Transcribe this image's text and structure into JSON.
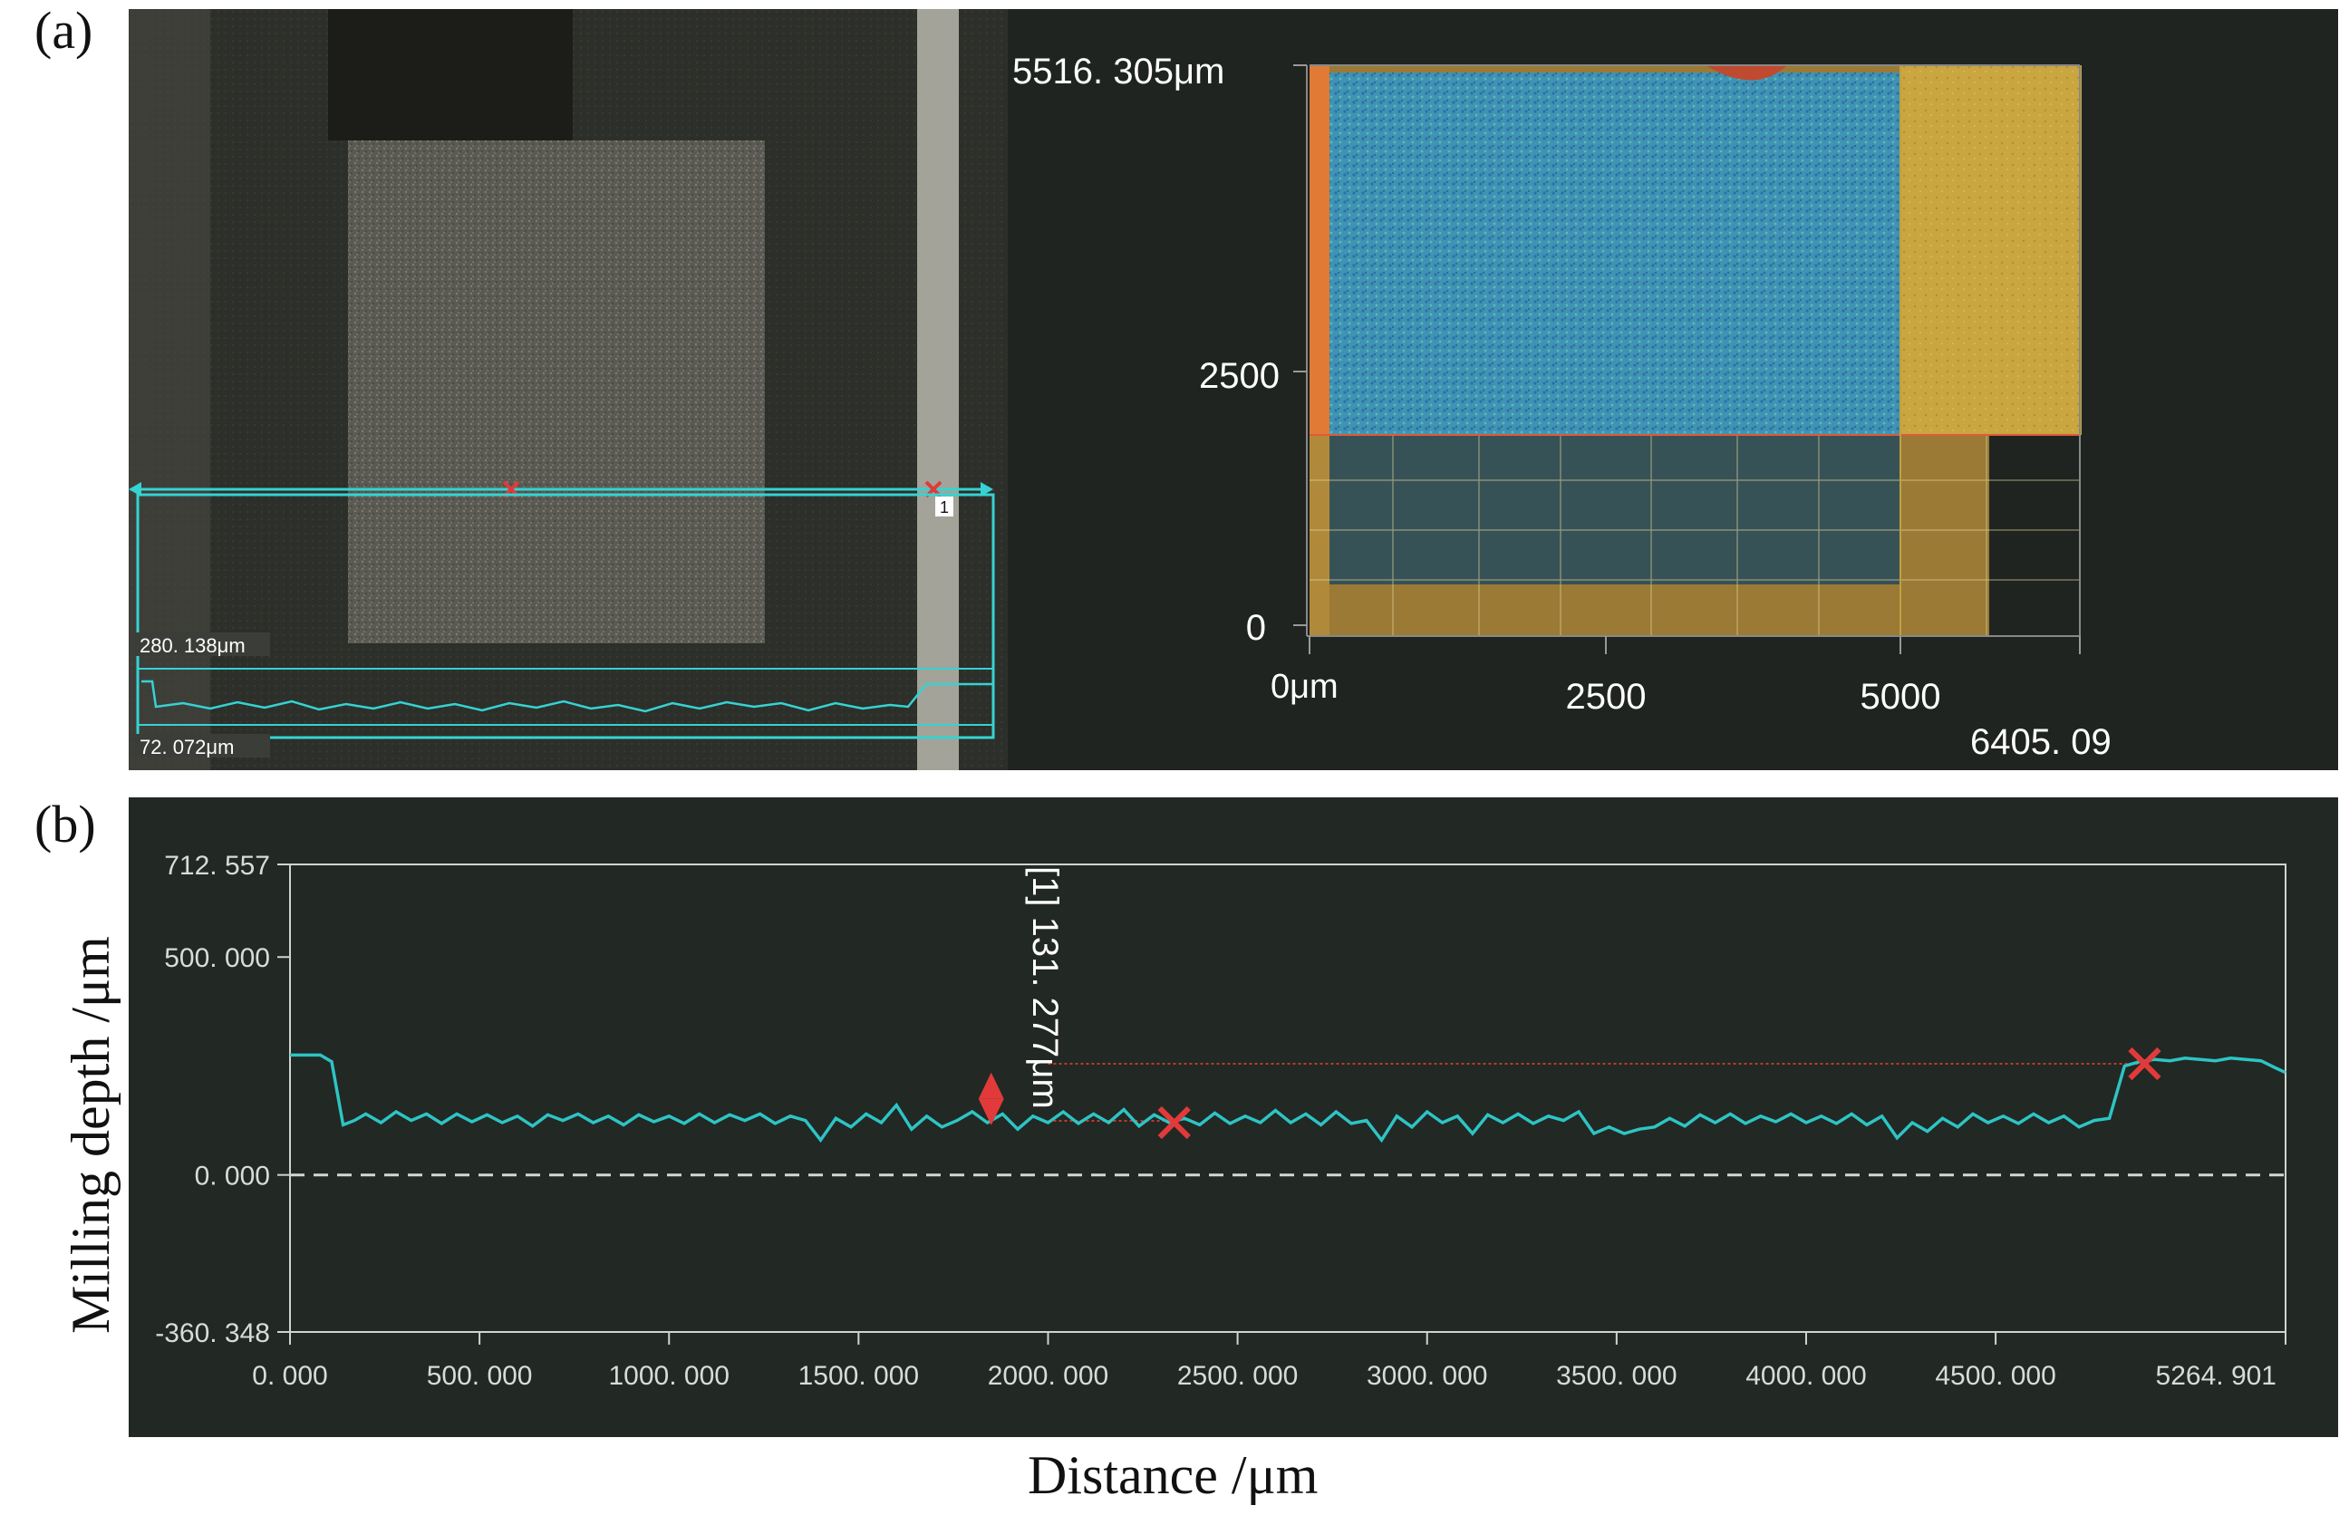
{
  "panel_labels": {
    "a": "(a)",
    "b": "(b)"
  },
  "microscope_view": {
    "measure_marker": "1",
    "profile_readout_top": "280. 138μm",
    "profile_readout_bottom": "72. 072μm"
  },
  "height_map_3d": {
    "y_max_label": "5516. 305μm",
    "y_tick_2500": "2500",
    "y_tick_0": "0",
    "x_tick_0": "0μm",
    "x_tick_2500": "2500",
    "x_tick_5000": "5000",
    "x_max_label": "6405. 09",
    "colors": {
      "milled_region": "#3a8fb0",
      "unmilled_region": "#c9a640",
      "edge": "#e06030"
    }
  },
  "chart_data": {
    "type": "line",
    "xlabel": "Distance /μm",
    "ylabel": "Milling depth /μm",
    "xlim": [
      0.0,
      5264.901
    ],
    "ylim": [
      -360.348,
      712.557
    ],
    "x_tick_labels": [
      "0. 000",
      "500. 000",
      "1000. 000",
      "1500. 000",
      "2000. 000",
      "2500. 000",
      "3000. 000",
      "3500. 000",
      "4000. 000",
      "4500. 000",
      "5264. 901"
    ],
    "y_tick_labels": [
      "712. 557",
      "500. 000",
      "0. 000",
      "-360. 348"
    ],
    "measurement_label": "[1]  131. 277μm",
    "reference_level": 255,
    "measured_level": 124,
    "marker_points": [
      [
        2333,
        120
      ],
      [
        4893,
        255
      ]
    ],
    "series": [
      {
        "values": [
          [
            0,
            275
          ],
          [
            80,
            275
          ],
          [
            110,
            260
          ],
          [
            140,
            115
          ],
          [
            170,
            125
          ],
          [
            200,
            140
          ],
          [
            240,
            120
          ],
          [
            280,
            145
          ],
          [
            320,
            125
          ],
          [
            360,
            140
          ],
          [
            400,
            118
          ],
          [
            440,
            140
          ],
          [
            480,
            122
          ],
          [
            520,
            138
          ],
          [
            560,
            120
          ],
          [
            600,
            135
          ],
          [
            640,
            112
          ],
          [
            680,
            138
          ],
          [
            720,
            125
          ],
          [
            760,
            140
          ],
          [
            800,
            120
          ],
          [
            840,
            135
          ],
          [
            880,
            115
          ],
          [
            920,
            138
          ],
          [
            960,
            122
          ],
          [
            1000,
            135
          ],
          [
            1040,
            118
          ],
          [
            1080,
            140
          ],
          [
            1120,
            120
          ],
          [
            1160,
            138
          ],
          [
            1200,
            125
          ],
          [
            1240,
            140
          ],
          [
            1280,
            118
          ],
          [
            1320,
            135
          ],
          [
            1360,
            125
          ],
          [
            1400,
            80
          ],
          [
            1440,
            130
          ],
          [
            1480,
            110
          ],
          [
            1520,
            140
          ],
          [
            1560,
            120
          ],
          [
            1600,
            160
          ],
          [
            1640,
            105
          ],
          [
            1680,
            135
          ],
          [
            1720,
            110
          ],
          [
            1760,
            125
          ],
          [
            1800,
            145
          ],
          [
            1840,
            120
          ],
          [
            1880,
            140
          ],
          [
            1920,
            105
          ],
          [
            1960,
            135
          ],
          [
            2000,
            120
          ],
          [
            2040,
            145
          ],
          [
            2080,
            118
          ],
          [
            2120,
            140
          ],
          [
            2160,
            120
          ],
          [
            2200,
            150
          ],
          [
            2240,
            112
          ],
          [
            2280,
            138
          ],
          [
            2320,
            120
          ],
          [
            2360,
            130
          ],
          [
            2400,
            115
          ],
          [
            2440,
            142
          ],
          [
            2480,
            118
          ],
          [
            2520,
            135
          ],
          [
            2560,
            120
          ],
          [
            2600,
            148
          ],
          [
            2640,
            120
          ],
          [
            2680,
            140
          ],
          [
            2720,
            115
          ],
          [
            2760,
            145
          ],
          [
            2800,
            118
          ],
          [
            2840,
            125
          ],
          [
            2880,
            80
          ],
          [
            2920,
            135
          ],
          [
            2960,
            110
          ],
          [
            3000,
            145
          ],
          [
            3040,
            120
          ],
          [
            3080,
            135
          ],
          [
            3120,
            95
          ],
          [
            3160,
            138
          ],
          [
            3200,
            120
          ],
          [
            3240,
            140
          ],
          [
            3280,
            118
          ],
          [
            3320,
            135
          ],
          [
            3360,
            125
          ],
          [
            3400,
            145
          ],
          [
            3440,
            95
          ],
          [
            3480,
            110
          ],
          [
            3520,
            95
          ],
          [
            3560,
            105
          ],
          [
            3600,
            110
          ],
          [
            3640,
            130
          ],
          [
            3680,
            112
          ],
          [
            3720,
            138
          ],
          [
            3760,
            120
          ],
          [
            3800,
            140
          ],
          [
            3840,
            118
          ],
          [
            3880,
            135
          ],
          [
            3920,
            122
          ],
          [
            3960,
            140
          ],
          [
            4000,
            120
          ],
          [
            4040,
            135
          ],
          [
            4080,
            118
          ],
          [
            4120,
            140
          ],
          [
            4160,
            115
          ],
          [
            4200,
            135
          ],
          [
            4240,
            85
          ],
          [
            4280,
            120
          ],
          [
            4320,
            100
          ],
          [
            4360,
            130
          ],
          [
            4400,
            110
          ],
          [
            4440,
            140
          ],
          [
            4480,
            120
          ],
          [
            4520,
            135
          ],
          [
            4560,
            118
          ],
          [
            4600,
            140
          ],
          [
            4640,
            120
          ],
          [
            4680,
            135
          ],
          [
            4720,
            110
          ],
          [
            4760,
            125
          ],
          [
            4800,
            130
          ],
          [
            4840,
            250
          ],
          [
            4880,
            260
          ],
          [
            4920,
            265
          ],
          [
            4960,
            262
          ],
          [
            5000,
            268
          ],
          [
            5040,
            265
          ],
          [
            5080,
            262
          ],
          [
            5120,
            268
          ],
          [
            5160,
            265
          ],
          [
            5200,
            262
          ],
          [
            5240,
            245
          ],
          [
            5264.901,
            235
          ]
        ],
        "color": "#2ec4c4"
      }
    ],
    "grid": false
  }
}
